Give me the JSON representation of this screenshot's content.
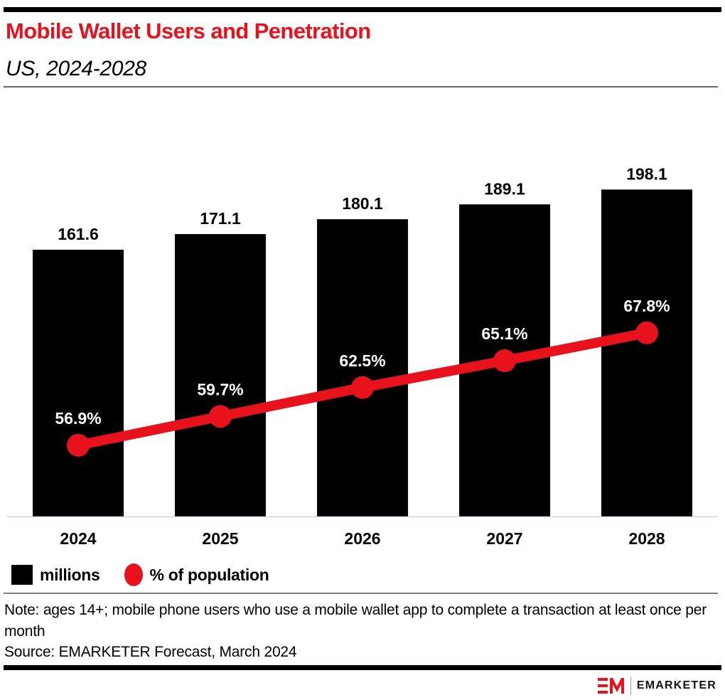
{
  "header": {
    "title": "Mobile Wallet Users and Penetration",
    "subtitle": "US, 2024-2028"
  },
  "colors": {
    "title": "#e8121d",
    "bar": "#000000",
    "line": "#e8121d",
    "axis": "#c8d4e8"
  },
  "chart_data": {
    "type": "bar",
    "title": "Mobile Wallet Users and Penetration",
    "subtitle": "US, 2024-2028",
    "xlabel": "",
    "ylabel": "",
    "categories": [
      "2024",
      "2025",
      "2026",
      "2027",
      "2028"
    ],
    "series": [
      {
        "name": "millions",
        "type": "bar",
        "values": [
          161.6,
          171.1,
          180.1,
          189.1,
          198.1
        ],
        "labels": [
          "161.6",
          "171.1",
          "180.1",
          "189.1",
          "198.1"
        ],
        "ylim": [
          0,
          250
        ]
      },
      {
        "name": "% of population",
        "type": "line",
        "values": [
          56.9,
          59.7,
          62.5,
          65.1,
          67.8
        ],
        "labels": [
          "56.9%",
          "59.7%",
          "62.5%",
          "65.1%",
          "67.8%"
        ],
        "ylim": [
          50,
          90
        ]
      }
    ],
    "grid": false,
    "legend": "bottom-left"
  },
  "legend": {
    "items": [
      {
        "label": "millions",
        "marker": "square-icon"
      },
      {
        "label": "% of population",
        "marker": "circle-icon"
      }
    ]
  },
  "footer": {
    "note": "Note: ages 14+; mobile phone users who use a mobile wallet app to complete a transaction at least once per month",
    "source": "Source: EMARKETER Forecast, March 2024",
    "brand": "EMARKETER"
  }
}
